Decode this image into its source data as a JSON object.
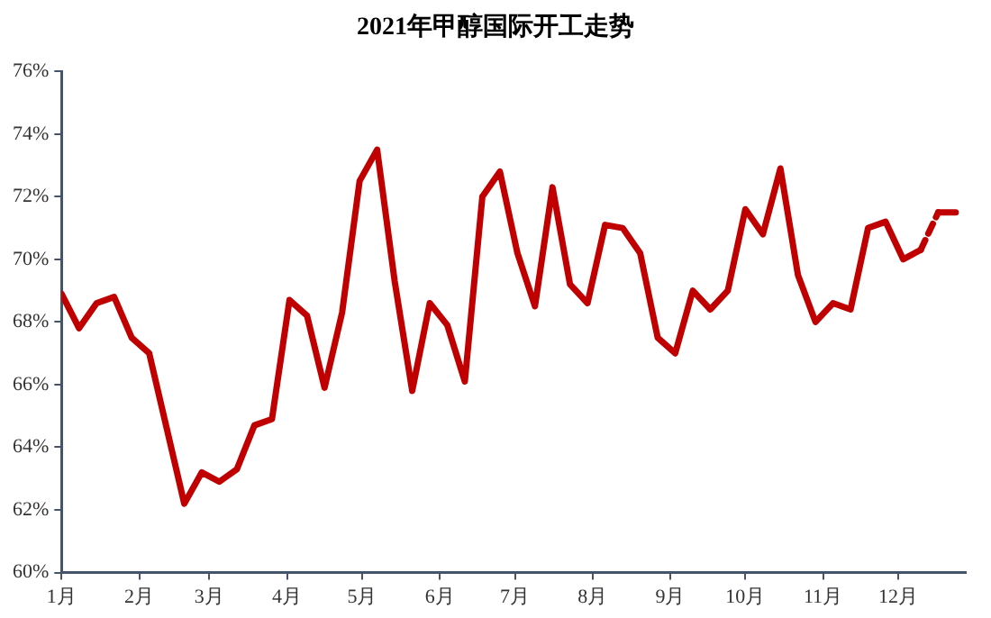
{
  "chart_data": {
    "type": "line",
    "title": "2021年甲醇国际开工走势",
    "xlim": [
      "2021-01-01",
      "2021-12-28"
    ],
    "xticks": [
      {
        "value": "2021-01-01",
        "label": "1月"
      },
      {
        "value": "2021-02-01",
        "label": "2月"
      },
      {
        "value": "2021-03-01",
        "label": "3月"
      },
      {
        "value": "2021-04-01",
        "label": "4月"
      },
      {
        "value": "2021-05-01",
        "label": "5月"
      },
      {
        "value": "2021-06-01",
        "label": "6月"
      },
      {
        "value": "2021-07-01",
        "label": "7月"
      },
      {
        "value": "2021-08-01",
        "label": "8月"
      },
      {
        "value": "2021-09-01",
        "label": "9月"
      },
      {
        "value": "2021-10-01",
        "label": "10月"
      },
      {
        "value": "2021-11-01",
        "label": "11月"
      },
      {
        "value": "2021-12-01",
        "label": "12月"
      }
    ],
    "ylim": [
      60,
      76
    ],
    "yticks": [
      {
        "value": 60,
        "label": "60%"
      },
      {
        "value": 62,
        "label": "62%"
      },
      {
        "value": 64,
        "label": "64%"
      },
      {
        "value": 66,
        "label": "66%"
      },
      {
        "value": 68,
        "label": "68%"
      },
      {
        "value": 70,
        "label": "70%"
      },
      {
        "value": 72,
        "label": "72%"
      },
      {
        "value": 74,
        "label": "74%"
      },
      {
        "value": 76,
        "label": "76%"
      }
    ],
    "grid": false,
    "legend": false,
    "marker": "none",
    "series": [
      {
        "color": "#c00000",
        "line_style": "solid",
        "x": [
          "2021-01-01",
          "2021-01-08",
          "2021-01-15",
          "2021-01-22",
          "2021-01-29",
          "2021-02-05",
          "2021-02-12",
          "2021-02-19",
          "2021-02-26",
          "2021-03-05",
          "2021-03-12",
          "2021-03-19",
          "2021-03-26",
          "2021-04-02",
          "2021-04-09",
          "2021-04-16",
          "2021-04-23",
          "2021-04-30",
          "2021-05-07",
          "2021-05-14",
          "2021-05-21",
          "2021-05-28",
          "2021-06-04",
          "2021-06-11",
          "2021-06-18",
          "2021-06-25",
          "2021-07-02",
          "2021-07-09",
          "2021-07-16",
          "2021-07-23",
          "2021-07-30",
          "2021-08-06",
          "2021-08-13",
          "2021-08-20",
          "2021-08-27",
          "2021-09-03",
          "2021-09-10",
          "2021-09-17",
          "2021-09-24",
          "2021-10-01",
          "2021-10-08",
          "2021-10-15",
          "2021-10-22",
          "2021-10-29",
          "2021-11-05",
          "2021-11-12",
          "2021-11-19",
          "2021-11-26",
          "2021-12-03",
          "2021-12-10"
        ],
        "values": [
          68.9,
          67.8,
          68.6,
          68.8,
          67.5,
          67.0,
          64.6,
          62.2,
          63.2,
          62.9,
          63.3,
          64.7,
          64.9,
          68.7,
          68.2,
          65.9,
          68.3,
          72.5,
          73.5,
          69.3,
          65.8,
          68.6,
          67.9,
          66.1,
          72.0,
          72.8,
          70.2,
          68.5,
          72.3,
          69.2,
          68.6,
          71.1,
          71.0,
          70.2,
          67.5,
          67.0,
          69.0,
          68.4,
          69.0,
          71.6,
          70.8,
          72.9,
          69.5,
          68.0,
          68.6,
          68.4,
          71.0,
          71.2,
          70.0,
          70.3
        ]
      },
      {
        "color": "#c00000",
        "line_style": "dashed",
        "x": [
          "2021-12-10",
          "2021-12-17"
        ],
        "values": [
          70.3,
          71.5
        ]
      },
      {
        "color": "#c00000",
        "line_style": "solid",
        "x": [
          "2021-12-17",
          "2021-12-24"
        ],
        "values": [
          71.5,
          71.5
        ]
      }
    ]
  }
}
